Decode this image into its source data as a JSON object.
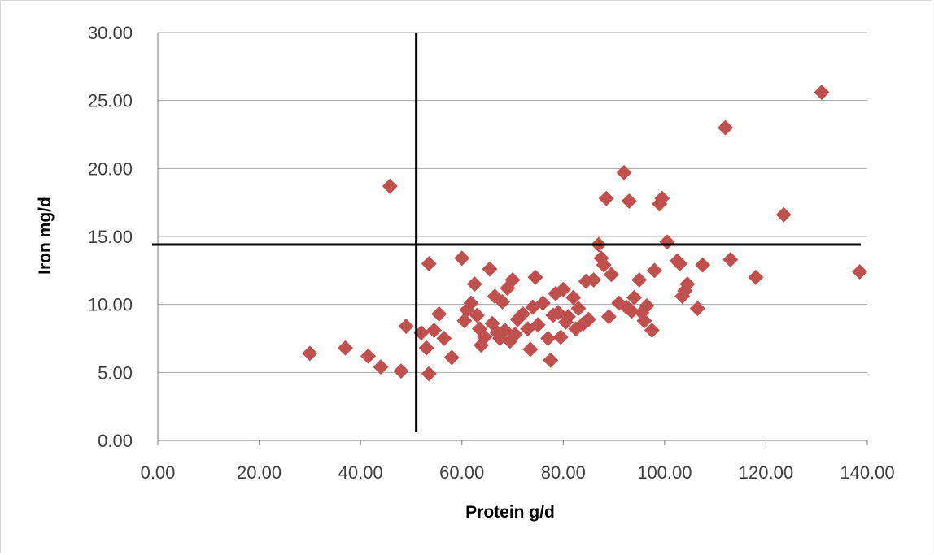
{
  "chart_data": {
    "type": "scatter",
    "title": "",
    "xlabel": "Protein g/d",
    "ylabel": "Iron mg/d",
    "xlim": [
      0,
      140
    ],
    "ylim": [
      0,
      30
    ],
    "x_ticks": [
      "0.00",
      "20.00",
      "40.00",
      "60.00",
      "80.00",
      "100.00",
      "120.00",
      "140.00"
    ],
    "y_ticks": [
      "0.00",
      "5.00",
      "10.00",
      "15.00",
      "20.00",
      "25.00",
      "30.00"
    ],
    "grid": "horizontal",
    "legend": "none",
    "marker_color": "#c0504d",
    "reference_lines": {
      "x": 51,
      "y": 14.4
    },
    "points": [
      [
        30,
        6.4
      ],
      [
        37,
        6.8
      ],
      [
        41.5,
        6.2
      ],
      [
        44,
        5.4
      ],
      [
        45.8,
        18.7
      ],
      [
        48,
        5.1
      ],
      [
        49,
        8.4
      ],
      [
        52,
        7.9
      ],
      [
        53,
        6.8
      ],
      [
        53.5,
        4.9
      ],
      [
        53.5,
        13
      ],
      [
        54.5,
        8.1
      ],
      [
        55.5,
        9.3
      ],
      [
        56.5,
        7.5
      ],
      [
        58,
        6.1
      ],
      [
        60,
        13.4
      ],
      [
        60.5,
        8.8
      ],
      [
        61,
        9.6
      ],
      [
        61.8,
        10.1
      ],
      [
        62.5,
        11.5
      ],
      [
        63,
        9.2
      ],
      [
        63.5,
        8.2
      ],
      [
        63.8,
        7
      ],
      [
        64.5,
        7.6
      ],
      [
        65.5,
        12.6
      ],
      [
        66,
        8.6
      ],
      [
        66.5,
        10.6
      ],
      [
        67,
        7.9
      ],
      [
        67.5,
        7.5
      ],
      [
        68,
        10.2
      ],
      [
        68.5,
        8.1
      ],
      [
        69,
        11.2
      ],
      [
        69.5,
        7.3
      ],
      [
        70,
        11.8
      ],
      [
        70.5,
        7.8
      ],
      [
        71,
        8.9
      ],
      [
        72,
        9.3
      ],
      [
        73,
        8.2
      ],
      [
        73.5,
        6.7
      ],
      [
        74,
        9.8
      ],
      [
        74.5,
        12
      ],
      [
        75,
        8.5
      ],
      [
        76,
        10.1
      ],
      [
        77,
        7.5
      ],
      [
        77.5,
        5.9
      ],
      [
        78,
        9.2
      ],
      [
        78.5,
        10.8
      ],
      [
        79,
        9.4
      ],
      [
        79.5,
        7.6
      ],
      [
        80,
        11.1
      ],
      [
        80.5,
        8.7
      ],
      [
        81,
        9.1
      ],
      [
        82,
        10.5
      ],
      [
        82.5,
        8.2
      ],
      [
        83,
        9.7
      ],
      [
        84,
        8.6
      ],
      [
        84.5,
        11.7
      ],
      [
        85,
        8.9
      ],
      [
        86,
        11.8
      ],
      [
        87,
        14.4
      ],
      [
        87.5,
        13.4
      ],
      [
        88,
        12.9
      ],
      [
        88.5,
        17.8
      ],
      [
        89,
        9.1
      ],
      [
        89.5,
        12.2
      ],
      [
        91,
        10.1
      ],
      [
        92,
        19.7
      ],
      [
        92.5,
        9.8
      ],
      [
        93,
        17.6
      ],
      [
        93.5,
        9.5
      ],
      [
        94,
        10.5
      ],
      [
        95,
        11.8
      ],
      [
        95.5,
        9.4
      ],
      [
        96,
        8.8
      ],
      [
        96.5,
        9.9
      ],
      [
        97.5,
        8.1
      ],
      [
        98,
        12.5
      ],
      [
        99,
        17.4
      ],
      [
        99.5,
        17.8
      ],
      [
        100.5,
        14.6
      ],
      [
        102.5,
        13.2
      ],
      [
        103,
        13
      ],
      [
        103.5,
        10.6
      ],
      [
        104,
        11
      ],
      [
        104.5,
        11.5
      ],
      [
        106.5,
        9.7
      ],
      [
        107.5,
        12.9
      ],
      [
        112,
        23
      ],
      [
        113,
        13.3
      ],
      [
        118,
        12
      ],
      [
        123.5,
        16.6
      ],
      [
        131,
        25.6
      ],
      [
        138.5,
        12.4
      ]
    ]
  }
}
